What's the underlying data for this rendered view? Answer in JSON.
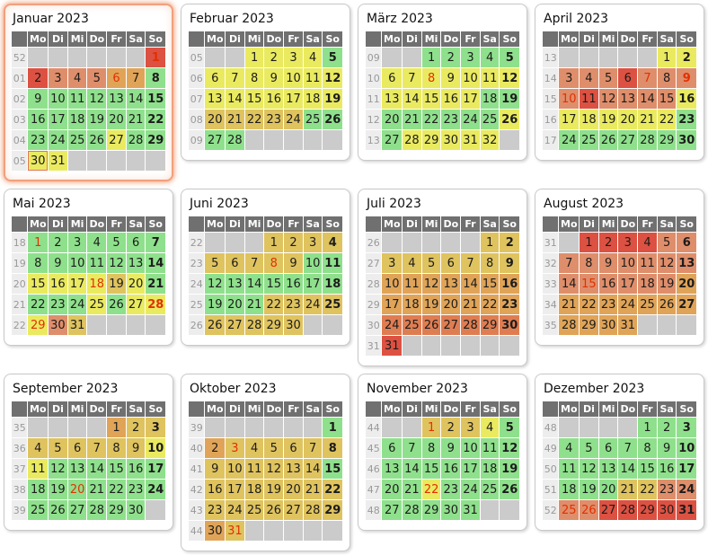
{
  "weekday_headers": [
    "Mo",
    "Di",
    "Mi",
    "Do",
    "Fr",
    "Sa",
    "So"
  ],
  "palette": {
    "g": "#8FE08C",
    "y": "#EAEA60",
    "t": "#DFC35F",
    "o": "#E0A458",
    "s": "#DF8E6B",
    "d": "#DF7D52",
    "r": "#DC5142"
  },
  "colors_meta": {
    "header_bg": "#707070",
    "header_text": "#FFFFFF",
    "week_number_bg": "#EDEDED",
    "week_number_text": "#999999",
    "empty_cell_bg": "#CBCBCB",
    "holiday_text": "#E33000",
    "today_border": "#E0755A",
    "current_month_border": "#F1A07C",
    "panel_border": "#C9C9C9"
  },
  "months": [
    {
      "title": "Januar 2023",
      "current": true,
      "first_weekday": 6,
      "week_numbers": [
        "52",
        "01",
        "02",
        "03",
        "04",
        "05"
      ],
      "day_colors": "rrsssoogggggggggggggggggggyggyy",
      "holidays": [
        1,
        6
      ],
      "today": 30
    },
    {
      "title": "Februar 2023",
      "current": false,
      "first_weekday": 2,
      "week_numbers": [
        "05",
        "06",
        "07",
        "08",
        "09"
      ],
      "day_colors": "yyyygyyyyyyyyyyyyyytttttgggg",
      "holidays": []
    },
    {
      "title": "März 2023",
      "current": false,
      "first_weekday": 2,
      "week_numbers": [
        "09",
        "10",
        "11",
        "12",
        "13"
      ],
      "day_colors": "gggggyyyyyyyyyyyyggggggggygyyyyy",
      "holidays": [
        8
      ]
    },
    {
      "title": "April 2023",
      "current": false,
      "first_weekday": 5,
      "week_numbers": [
        "13",
        "14",
        "15",
        "16",
        "17"
      ],
      "day_colors": "yysssrssssrssssyyyyyyygggggggg",
      "holidays": [
        7,
        9,
        10
      ]
    },
    {
      "title": "Mai 2023",
      "current": false,
      "first_weekday": 0,
      "week_numbers": [
        "18",
        "19",
        "20",
        "21",
        "22"
      ],
      "day_colors": "ggggggggggggggyyyytyggggygyyyst",
      "holidays": [
        1,
        18,
        28,
        29
      ]
    },
    {
      "title": "Juni 2023",
      "current": false,
      "first_weekday": 3,
      "week_numbers": [
        "22",
        "23",
        "24",
        "25",
        "26"
      ],
      "day_colors": "tttttttttggggggggggggttttttttt",
      "holidays": [
        8
      ]
    },
    {
      "title": "Juli 2023",
      "current": false,
      "first_weekday": 5,
      "week_numbers": [
        "26",
        "27",
        "28",
        "29",
        "30",
        "31"
      ],
      "day_colors": "tttttttttoooooooooooooodddddddr",
      "holidays": []
    },
    {
      "title": "August 2023",
      "current": false,
      "first_weekday": 1,
      "week_numbers": [
        "31",
        "32",
        "33",
        "34",
        "35"
      ],
      "day_colors": "rrrrsssssssssssssssoooooooooooo",
      "holidays": [
        15
      ]
    },
    {
      "title": "September 2023",
      "current": false,
      "first_weekday": 4,
      "week_numbers": [
        "35",
        "36",
        "37",
        "38",
        "39"
      ],
      "day_colors": "ottttttttyyggggggggggggggggggg",
      "holidays": [
        20
      ]
    },
    {
      "title": "Oktober 2023",
      "current": false,
      "first_weekday": 6,
      "week_numbers": [
        "39",
        "40",
        "41",
        "42",
        "43",
        "44"
      ],
      "day_colors": "gottttttttttttgttttttttttttttot",
      "holidays": [
        3,
        31
      ]
    },
    {
      "title": "November 2023",
      "current": false,
      "first_weekday": 2,
      "week_numbers": [
        "44",
        "45",
        "46",
        "47",
        "48"
      ],
      "day_colors": "tttygggggggggggggggggyggggggggg",
      "holidays": [
        1,
        22
      ]
    },
    {
      "title": "Dezember 2023",
      "current": false,
      "first_weekday": 4,
      "week_numbers": [
        "48",
        "49",
        "50",
        "51",
        "52"
      ],
      "day_colors": "ggggggggggggggggggggttssssrrrrr",
      "holidays": [
        25,
        26
      ]
    }
  ]
}
